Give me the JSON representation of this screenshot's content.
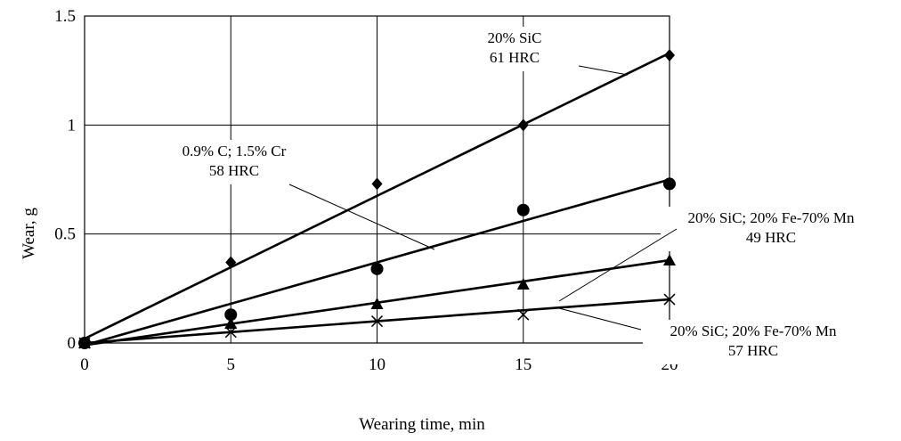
{
  "chart_data": {
    "type": "line",
    "title": "",
    "xlabel": "Wearing time, min",
    "ylabel": "Wear, g",
    "xlim": [
      0,
      20
    ],
    "ylim": [
      0,
      1.5
    ],
    "x_ticks": [
      "0",
      "5",
      "10",
      "15",
      "20"
    ],
    "y_ticks": [
      "0",
      "0.5",
      "1",
      "1.5"
    ],
    "grid": true,
    "legend": "none",
    "series": [
      {
        "marker": "diamond",
        "x": [
          0,
          5,
          10,
          15,
          20
        ],
        "y": [
          0,
          0.37,
          0.73,
          1.0,
          1.32
        ],
        "fit": [
          0.02,
          1.33
        ]
      },
      {
        "marker": "circle",
        "x": [
          0,
          5,
          10,
          15,
          20
        ],
        "y": [
          0,
          0.13,
          0.34,
          0.61,
          0.73
        ],
        "fit": [
          -0.01,
          0.75
        ]
      },
      {
        "marker": "triangle",
        "x": [
          0,
          5,
          10,
          15,
          20
        ],
        "y": [
          0,
          0.09,
          0.18,
          0.27,
          0.38
        ],
        "fit": [
          -0.01,
          0.38
        ]
      },
      {
        "marker": "x",
        "x": [
          0,
          5,
          10,
          15,
          20
        ],
        "y": [
          0,
          0.05,
          0.1,
          0.13,
          0.2
        ],
        "fit": [
          0.0,
          0.2
        ]
      }
    ],
    "annotations": [
      {
        "lines": [
          "20% SiC",
          "61 HRC"
        ]
      },
      {
        "lines": [
          "0.9% C; 1.5% Cr",
          "58 HRC"
        ]
      },
      {
        "lines": [
          "20% SiC; 20% Fe-70% Mn",
          "49 HRC"
        ]
      },
      {
        "lines": [
          "20% SiC; 20% Fe-70% Mn",
          "57 HRC"
        ]
      }
    ]
  }
}
